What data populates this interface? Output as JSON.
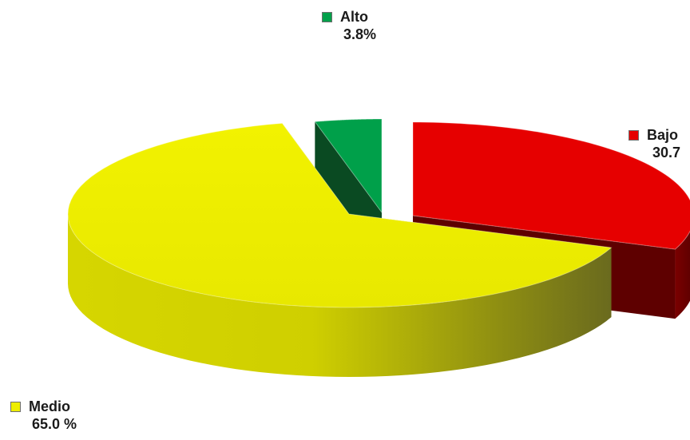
{
  "chart_data": {
    "type": "pie",
    "style": "3d-exploded",
    "categories": [
      "Bajo",
      "Medio",
      "Alto"
    ],
    "values": [
      30.7,
      65.0,
      3.8
    ],
    "value_labels": [
      "30.7",
      "65.0 %",
      "3.8%"
    ],
    "colors": {
      "Bajo": "#e60000",
      "Medio": "#eeee00",
      "Alto": "#00a04a"
    }
  }
}
